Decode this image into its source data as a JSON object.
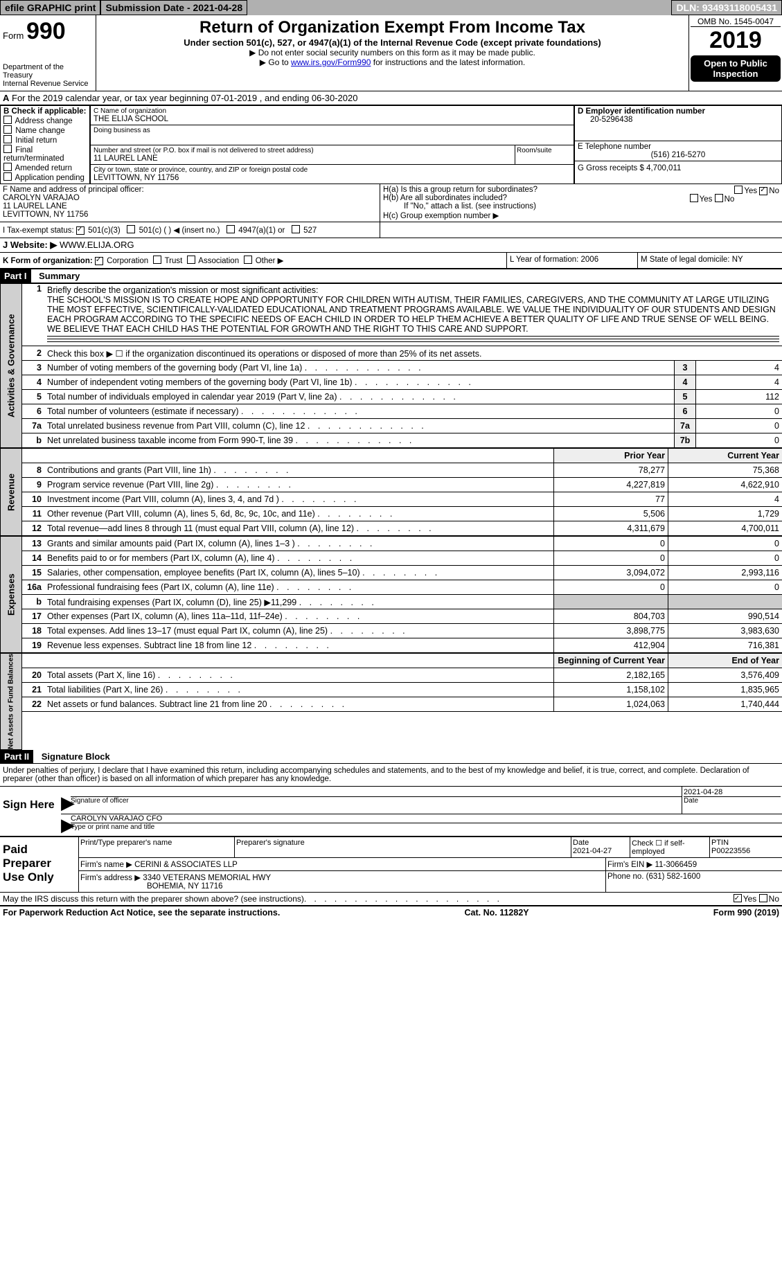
{
  "topbar": {
    "efile": "efile GRAPHIC print",
    "submission": "Submission Date - 2021-04-28",
    "dln": "DLN: 93493118005431"
  },
  "header": {
    "form_label": "Form",
    "form_num": "990",
    "dept1": "Department of the Treasury",
    "dept2": "Internal Revenue Service",
    "title": "Return of Organization Exempt From Income Tax",
    "subtitle": "Under section 501(c), 527, or 4947(a)(1) of the Internal Revenue Code (except private foundations)",
    "note1": "▶ Do not enter social security numbers on this form as it may be made public.",
    "note2": "▶ Go to www.irs.gov/Form990 for instructions and the latest information.",
    "omb": "OMB No. 1545-0047",
    "year": "2019",
    "open": "Open to Public Inspection"
  },
  "period": "For the 2019 calendar year, or tax year beginning 07-01-2019   , and ending 06-30-2020",
  "boxA_label": "A",
  "boxB": {
    "label": "B Check if applicable:",
    "items": [
      "Address change",
      "Name change",
      "Initial return",
      "Final return/terminated",
      "Amended return",
      "Application pending"
    ]
  },
  "boxC": {
    "label": "C Name of organization",
    "name": "THE ELIJA SCHOOL",
    "dba": "Doing business as",
    "street_label": "Number and street (or P.O. box if mail is not delivered to street address)",
    "street": "11 LAUREL LANE",
    "room": "Room/suite",
    "city_label": "City or town, state or province, country, and ZIP or foreign postal code",
    "city": "LEVITTOWN, NY  11756"
  },
  "boxD": {
    "label": "D Employer identification number",
    "value": "20-5296438"
  },
  "boxE": {
    "label": "E Telephone number",
    "value": "(516) 216-5270"
  },
  "boxG": {
    "label": "G Gross receipts $",
    "value": "4,700,011"
  },
  "boxF": {
    "label": "F  Name and address of principal officer:",
    "name": "CAROLYN VARAJAO",
    "addr1": "11 LAUREL LANE",
    "addr2": "LEVITTOWN, NY  11756"
  },
  "boxH": {
    "a": "H(a)  Is this a group return for subordinates?",
    "b": "H(b)  Are all subordinates included?",
    "b_note": "If \"No,\" attach a list. (see instructions)",
    "c": "H(c)  Group exemption number ▶",
    "yes": "Yes",
    "no": "No"
  },
  "boxI": {
    "label": "I  Tax-exempt status:",
    "opt1": "501(c)(3)",
    "opt2": "501(c) (   ) ◀ (insert no.)",
    "opt3": "4947(a)(1) or",
    "opt4": "527"
  },
  "boxJ": {
    "label": "J  Website: ▶",
    "value": "WWW.ELIJA.ORG"
  },
  "boxK": {
    "label": "K Form of organization:",
    "opts": [
      "Corporation",
      "Trust",
      "Association",
      "Other ▶"
    ]
  },
  "boxL": {
    "label": "L Year of formation:",
    "value": "2006"
  },
  "boxM": {
    "label": "M State of legal domicile:",
    "value": "NY"
  },
  "part1": {
    "label": "Part I",
    "title": "Summary"
  },
  "summary": {
    "line1_label": "1",
    "line1_desc": "Briefly describe the organization's mission or most significant activities:",
    "mission": "THE SCHOOL'S MISSION IS TO CREATE HOPE AND OPPORTUNITY FOR CHILDREN WITH AUTISM, THEIR FAMILIES, CAREGIVERS, AND THE COMMUNITY AT LARGE UTILIZING THE MOST EFFECTIVE, SCIENTIFICALLY-VALIDATED EDUCATIONAL AND TREATMENT PROGRAMS AVAILABLE. WE VALUE THE INDIVIDUALITY OF OUR STUDENTS AND DESIGN EACH PROGRAM ACCORDING TO THE SPECIFIC NEEDS OF EACH CHILD IN ORDER TO HELP THEM ACHIEVE A BETTER QUALITY OF LIFE AND TRUE SENSE OF WELL BEING. WE BELIEVE THAT EACH CHILD HAS THE POTENTIAL FOR GROWTH AND THE RIGHT TO THIS CARE AND SUPPORT.",
    "line2": "Check this box ▶ ☐ if the organization discontinued its operations or disposed of more than 25% of its net assets.",
    "rows": [
      {
        "num": "3",
        "desc": "Number of voting members of the governing body (Part VI, line 1a)",
        "box": "3",
        "val": "4"
      },
      {
        "num": "4",
        "desc": "Number of independent voting members of the governing body (Part VI, line 1b)",
        "box": "4",
        "val": "4"
      },
      {
        "num": "5",
        "desc": "Total number of individuals employed in calendar year 2019 (Part V, line 2a)",
        "box": "5",
        "val": "112"
      },
      {
        "num": "6",
        "desc": "Total number of volunteers (estimate if necessary)",
        "box": "6",
        "val": "0"
      },
      {
        "num": "7a",
        "desc": "Total unrelated business revenue from Part VIII, column (C), line 12",
        "box": "7a",
        "val": "0"
      },
      {
        "num": "b",
        "desc": "Net unrelated business taxable income from Form 990-T, line 39",
        "box": "7b",
        "val": "0"
      }
    ]
  },
  "revenue_header": {
    "prior": "Prior Year",
    "current": "Current Year"
  },
  "revenue": [
    {
      "num": "8",
      "desc": "Contributions and grants (Part VIII, line 1h)",
      "prior": "78,277",
      "current": "75,368"
    },
    {
      "num": "9",
      "desc": "Program service revenue (Part VIII, line 2g)",
      "prior": "4,227,819",
      "current": "4,622,910"
    },
    {
      "num": "10",
      "desc": "Investment income (Part VIII, column (A), lines 3, 4, and 7d )",
      "prior": "77",
      "current": "4"
    },
    {
      "num": "11",
      "desc": "Other revenue (Part VIII, column (A), lines 5, 6d, 8c, 9c, 10c, and 11e)",
      "prior": "5,506",
      "current": "1,729"
    },
    {
      "num": "12",
      "desc": "Total revenue—add lines 8 through 11 (must equal Part VIII, column (A), line 12)",
      "prior": "4,311,679",
      "current": "4,700,011"
    }
  ],
  "expenses": [
    {
      "num": "13",
      "desc": "Grants and similar amounts paid (Part IX, column (A), lines 1–3 )",
      "prior": "0",
      "current": "0"
    },
    {
      "num": "14",
      "desc": "Benefits paid to or for members (Part IX, column (A), line 4)",
      "prior": "0",
      "current": "0"
    },
    {
      "num": "15",
      "desc": "Salaries, other compensation, employee benefits (Part IX, column (A), lines 5–10)",
      "prior": "3,094,072",
      "current": "2,993,116"
    },
    {
      "num": "16a",
      "desc": "Professional fundraising fees (Part IX, column (A), line 11e)",
      "prior": "0",
      "current": "0"
    },
    {
      "num": "b",
      "desc": "Total fundraising expenses (Part IX, column (D), line 25) ▶11,299",
      "prior": "",
      "current": "",
      "gray": true
    },
    {
      "num": "17",
      "desc": "Other expenses (Part IX, column (A), lines 11a–11d, 11f–24e)",
      "prior": "804,703",
      "current": "990,514"
    },
    {
      "num": "18",
      "desc": "Total expenses. Add lines 13–17 (must equal Part IX, column (A), line 25)",
      "prior": "3,898,775",
      "current": "3,983,630"
    },
    {
      "num": "19",
      "desc": "Revenue less expenses. Subtract line 18 from line 12",
      "prior": "412,904",
      "current": "716,381"
    }
  ],
  "netassets_header": {
    "begin": "Beginning of Current Year",
    "end": "End of Year"
  },
  "netassets": [
    {
      "num": "20",
      "desc": "Total assets (Part X, line 16)",
      "prior": "2,182,165",
      "current": "3,576,409"
    },
    {
      "num": "21",
      "desc": "Total liabilities (Part X, line 26)",
      "prior": "1,158,102",
      "current": "1,835,965"
    },
    {
      "num": "22",
      "desc": "Net assets or fund balances. Subtract line 21 from line 20",
      "prior": "1,024,063",
      "current": "1,740,444"
    }
  ],
  "side_labels": {
    "ag": "Activities & Governance",
    "rev": "Revenue",
    "exp": "Expenses",
    "na": "Net Assets or Fund Balances"
  },
  "part2": {
    "label": "Part II",
    "title": "Signature Block"
  },
  "perjury": "Under penalties of perjury, I declare that I have examined this return, including accompanying schedules and statements, and to the best of my knowledge and belief, it is true, correct, and complete. Declaration of preparer (other than officer) is based on all information of which preparer has any knowledge.",
  "sign": {
    "here": "Sign Here",
    "sig_label": "Signature of officer",
    "date_label": "Date",
    "date": "2021-04-28",
    "name": "CAROLYN VARAJAO  CFO",
    "name_label": "Type or print name and title"
  },
  "preparer": {
    "label": "Paid Preparer Use Only",
    "cols": [
      "Print/Type preparer's name",
      "Preparer's signature",
      "Date",
      "Check ☐ if self-employed",
      "PTIN"
    ],
    "date": "2021-04-27",
    "ptin": "P00223556",
    "firm_name_label": "Firm's name      ▶",
    "firm_name": "CERINI & ASSOCIATES LLP",
    "firm_ein_label": "Firm's EIN ▶",
    "firm_ein": "11-3066459",
    "firm_addr_label": "Firm's address ▶",
    "firm_addr1": "3340 VETERANS MEMORIAL HWY",
    "firm_addr2": "BOHEMIA, NY  11716",
    "phone_label": "Phone no.",
    "phone": "(631) 582-1600"
  },
  "discuss": "May the IRS discuss this return with the preparer shown above? (see instructions)",
  "footer": {
    "left": "For Paperwork Reduction Act Notice, see the separate instructions.",
    "mid": "Cat. No. 11282Y",
    "right": "Form 990 (2019)"
  }
}
